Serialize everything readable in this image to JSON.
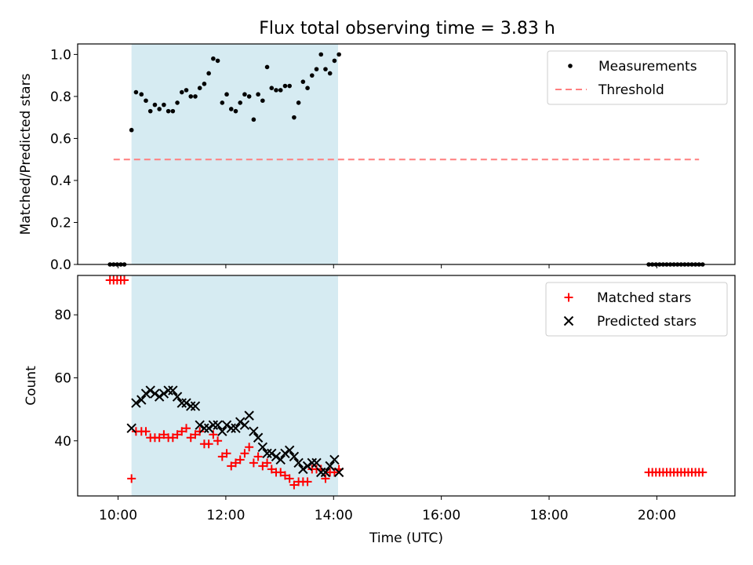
{
  "title": "Flux total observing time = 3.83 h",
  "shaded_region": {
    "start": "10:15",
    "end": "14:05",
    "color": "#add8e6"
  },
  "chart_data": [
    {
      "type": "scatter",
      "ylabel": "Matched/Predicted stars",
      "xlabel": "",
      "xlim": [
        "09:15",
        "21:27"
      ],
      "ylim": [
        0,
        1.05
      ],
      "yticks": [
        "0.0",
        "0.2",
        "0.4",
        "0.6",
        "0.8",
        "1.0"
      ],
      "legend": {
        "position": "top-right",
        "entries": [
          "Measurements",
          "Threshold"
        ]
      },
      "series": [
        {
          "name": "Measurements",
          "marker": "dot",
          "color": "#000000",
          "x": [
            "09:51",
            "09:55",
            "09:59",
            "10:03",
            "10:07",
            "10:15",
            "10:20",
            "10:26",
            "10:31",
            "10:36",
            "10:41",
            "10:46",
            "10:51",
            "10:56",
            "11:01",
            "11:06",
            "11:11",
            "11:16",
            "11:21",
            "11:26",
            "11:31",
            "11:36",
            "11:41",
            "11:46",
            "11:51",
            "11:56",
            "12:01",
            "12:06",
            "12:11",
            "12:16",
            "12:21",
            "12:26",
            "12:31",
            "12:36",
            "12:41",
            "12:46",
            "12:51",
            "12:56",
            "13:01",
            "13:06",
            "13:11",
            "13:16",
            "13:21",
            "13:26",
            "13:31",
            "13:36",
            "13:41",
            "13:46",
            "13:51",
            "13:56",
            "14:01",
            "14:06",
            "19:51",
            "19:55",
            "19:59",
            "20:03",
            "20:07",
            "20:11",
            "20:15",
            "20:19",
            "20:23",
            "20:27",
            "20:31",
            "20:35",
            "20:39",
            "20:43",
            "20:47",
            "20:51"
          ],
          "y": [
            0,
            0,
            0,
            0,
            0,
            0.64,
            0.82,
            0.81,
            0.78,
            0.73,
            0.76,
            0.74,
            0.76,
            0.73,
            0.73,
            0.77,
            0.82,
            0.83,
            0.8,
            0.8,
            0.84,
            0.86,
            0.91,
            0.98,
            0.97,
            0.77,
            0.81,
            0.74,
            0.73,
            0.77,
            0.81,
            0.8,
            0.69,
            0.81,
            0.78,
            0.94,
            0.84,
            0.83,
            0.83,
            0.85,
            0.85,
            0.7,
            0.77,
            0.87,
            0.84,
            0.9,
            0.93,
            1.0,
            0.93,
            0.91,
            0.97,
            1.0,
            0,
            0,
            0,
            0,
            0,
            0,
            0,
            0,
            0,
            0,
            0,
            0,
            0,
            0,
            0,
            0
          ]
        },
        {
          "name": "Threshold",
          "style": "dashed",
          "color": "#ff7f7f",
          "x": [
            "09:55",
            "20:47"
          ],
          "y": [
            0.5,
            0.5
          ]
        }
      ]
    },
    {
      "type": "scatter",
      "ylabel": "Count",
      "xlabel": "Time (UTC)",
      "xlim": [
        "09:15",
        "21:27"
      ],
      "ylim": [
        22.5,
        92.5
      ],
      "yticks": [
        "40",
        "60",
        "80"
      ],
      "xticks": [
        "10:00",
        "12:00",
        "14:00",
        "16:00",
        "18:00",
        "20:00"
      ],
      "legend": {
        "position": "top-right",
        "entries": [
          "Matched stars",
          "Predicted stars"
        ]
      },
      "series": [
        {
          "name": "Matched stars",
          "marker": "plus",
          "color": "#ff0000",
          "x": [
            "09:51",
            "09:55",
            "09:59",
            "10:03",
            "10:07",
            "10:15",
            "10:20",
            "10:26",
            "10:31",
            "10:36",
            "10:41",
            "10:46",
            "10:51",
            "10:56",
            "11:01",
            "11:06",
            "11:11",
            "11:16",
            "11:21",
            "11:26",
            "11:31",
            "11:36",
            "11:41",
            "11:46",
            "11:51",
            "11:56",
            "12:01",
            "12:06",
            "12:11",
            "12:16",
            "12:21",
            "12:26",
            "12:31",
            "12:36",
            "12:41",
            "12:46",
            "12:51",
            "12:56",
            "13:01",
            "13:06",
            "13:11",
            "13:16",
            "13:21",
            "13:26",
            "13:31",
            "13:36",
            "13:41",
            "13:46",
            "13:51",
            "13:56",
            "14:01",
            "14:06",
            "19:51",
            "19:55",
            "19:59",
            "20:03",
            "20:07",
            "20:11",
            "20:15",
            "20:19",
            "20:23",
            "20:27",
            "20:31",
            "20:35",
            "20:39",
            "20:43",
            "20:47",
            "20:51"
          ],
          "y": [
            91,
            91,
            91,
            91,
            91,
            28,
            43,
            43,
            43,
            41,
            41,
            41,
            42,
            41,
            41,
            42,
            43,
            44,
            41,
            42,
            43,
            39,
            39,
            42,
            40,
            35,
            36,
            32,
            33,
            34,
            36,
            38,
            33,
            35,
            32,
            33,
            31,
            30,
            30,
            29,
            28,
            26,
            27,
            27,
            27,
            31,
            31,
            31,
            28,
            30,
            30,
            31,
            30,
            30,
            30,
            30,
            30,
            30,
            30,
            30,
            30,
            30,
            30,
            30,
            30,
            30,
            30,
            30
          ]
        },
        {
          "name": "Predicted stars",
          "marker": "x",
          "color": "#000000",
          "x": [
            "10:15",
            "10:20",
            "10:26",
            "10:31",
            "10:36",
            "10:41",
            "10:46",
            "10:51",
            "10:56",
            "11:01",
            "11:06",
            "11:11",
            "11:16",
            "11:21",
            "11:26",
            "11:31",
            "11:36",
            "11:41",
            "11:46",
            "11:51",
            "11:56",
            "12:01",
            "12:06",
            "12:11",
            "12:16",
            "12:21",
            "12:26",
            "12:31",
            "12:36",
            "12:41",
            "12:46",
            "12:51",
            "12:56",
            "13:01",
            "13:06",
            "13:11",
            "13:16",
            "13:21",
            "13:26",
            "13:31",
            "13:36",
            "13:41",
            "13:46",
            "13:51",
            "13:56",
            "14:01",
            "14:06"
          ],
          "y": [
            44,
            52,
            53,
            55,
            56,
            55,
            54,
            55,
            56,
            56,
            54,
            52,
            52,
            51,
            51,
            45,
            44,
            44,
            45,
            45,
            43,
            45,
            44,
            44,
            46,
            45,
            48,
            43,
            41,
            38,
            36,
            36,
            35,
            34,
            36,
            37,
            35,
            33,
            31,
            32,
            33,
            33,
            30,
            30,
            32,
            34,
            30
          ]
        }
      ]
    }
  ]
}
